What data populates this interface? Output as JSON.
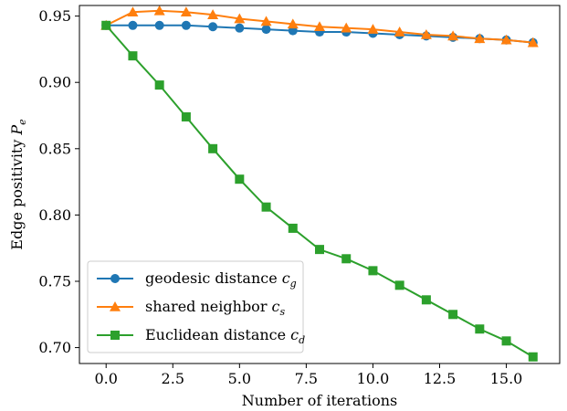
{
  "chart_data": {
    "type": "line",
    "xlabel": "Number of iterations",
    "ylabel": "Edge positivity",
    "ylabel_symbol": "P",
    "ylabel_sub": "e",
    "xlim": [
      -1.0,
      17.0
    ],
    "ylim": [
      0.688,
      0.958
    ],
    "x_ticks": [
      0.0,
      2.5,
      5.0,
      7.5,
      10.0,
      12.5,
      15.0
    ],
    "x_tick_labels": [
      "0.0",
      "2.5",
      "5.0",
      "7.5",
      "10.0",
      "12.5",
      "15.0"
    ],
    "y_ticks": [
      0.7,
      0.75,
      0.8,
      0.85,
      0.9,
      0.95
    ],
    "y_tick_labels": [
      "0.70",
      "0.75",
      "0.80",
      "0.85",
      "0.90",
      "0.95"
    ],
    "grid": false,
    "legend_position": "lower-left",
    "x": [
      0,
      1,
      2,
      3,
      4,
      5,
      6,
      7,
      8,
      9,
      10,
      11,
      12,
      13,
      14,
      15,
      16
    ],
    "series": [
      {
        "name": "geodesic distance",
        "symbol": "c",
        "sub": "g",
        "color": "#1f77b4",
        "marker": "circle",
        "values": [
          0.943,
          0.943,
          0.943,
          0.943,
          0.942,
          0.941,
          0.94,
          0.939,
          0.938,
          0.938,
          0.937,
          0.936,
          0.935,
          0.934,
          0.933,
          0.932,
          0.93
        ]
      },
      {
        "name": "shared neighbor",
        "symbol": "c",
        "sub": "s",
        "color": "#ff7f0e",
        "marker": "triangle",
        "values": [
          0.943,
          0.953,
          0.954,
          0.953,
          0.951,
          0.948,
          0.946,
          0.944,
          0.942,
          0.941,
          0.94,
          0.938,
          0.936,
          0.935,
          0.933,
          0.932,
          0.93
        ]
      },
      {
        "name": "Euclidean distance",
        "symbol": "c",
        "sub": "d",
        "color": "#2ca02c",
        "marker": "square",
        "values": [
          0.943,
          0.92,
          0.898,
          0.874,
          0.85,
          0.827,
          0.806,
          0.79,
          0.774,
          0.767,
          0.758,
          0.747,
          0.736,
          0.725,
          0.714,
          0.705,
          0.693
        ]
      }
    ]
  }
}
